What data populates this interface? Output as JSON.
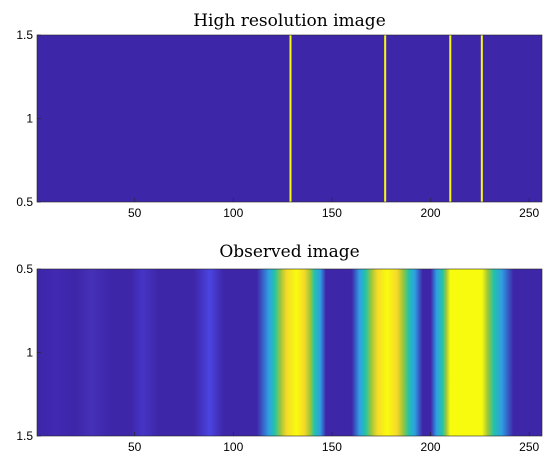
{
  "chart_data": [
    {
      "type": "heatmap",
      "title": "High resolution image",
      "xlim": [
        0.5,
        256.5
      ],
      "ylim": [
        0.5,
        1.5
      ],
      "y_direction": "normal",
      "xticks": [
        50,
        100,
        150,
        200,
        250
      ],
      "yticks": [
        0.5,
        1,
        1.5
      ],
      "colormap": "parula",
      "background_color": "#3E26A8",
      "lines": [
        {
          "x": 129,
          "color": "#F9FB0E"
        },
        {
          "x": 177,
          "color": "#F9FB0E"
        },
        {
          "x": 210,
          "color": "#F9FB0E"
        },
        {
          "x": 226,
          "color": "#F9FB0E"
        }
      ]
    },
    {
      "type": "heatmap",
      "title": "Observed image",
      "xlim": [
        0.5,
        256.5
      ],
      "ylim": [
        0.5,
        1.5
      ],
      "y_direction": "reverse",
      "xticks": [
        50,
        100,
        150,
        200,
        250
      ],
      "yticks": [
        0.5,
        1,
        1.5
      ],
      "colormap": "parula",
      "gradient_stops": [
        {
          "x": 0,
          "color": "#3E26A8"
        },
        {
          "x": 10,
          "color": "#4129B2"
        },
        {
          "x": 20,
          "color": "#3E26A8"
        },
        {
          "x": 28,
          "color": "#4530B8"
        },
        {
          "x": 38,
          "color": "#3E26A8"
        },
        {
          "x": 48,
          "color": "#3E26A8"
        },
        {
          "x": 54,
          "color": "#4535C6"
        },
        {
          "x": 62,
          "color": "#3E26A8"
        },
        {
          "x": 80,
          "color": "#3E26A8"
        },
        {
          "x": 88,
          "color": "#4A44E0"
        },
        {
          "x": 95,
          "color": "#3E26A8"
        },
        {
          "x": 112,
          "color": "#3E26A8"
        },
        {
          "x": 118,
          "color": "#2F9FE4"
        },
        {
          "x": 121,
          "color": "#23C3A8"
        },
        {
          "x": 124,
          "color": "#9DC63A"
        },
        {
          "x": 127,
          "color": "#F5D929"
        },
        {
          "x": 132,
          "color": "#F9FB0E"
        },
        {
          "x": 136,
          "color": "#F5D929"
        },
        {
          "x": 139,
          "color": "#9DC63A"
        },
        {
          "x": 141,
          "color": "#23C3A8"
        },
        {
          "x": 144,
          "color": "#2F9FE4"
        },
        {
          "x": 147,
          "color": "#3E26A8"
        },
        {
          "x": 160,
          "color": "#3E26A8"
        },
        {
          "x": 164,
          "color": "#2F9FE4"
        },
        {
          "x": 167,
          "color": "#23C3A8"
        },
        {
          "x": 170,
          "color": "#9DC63A"
        },
        {
          "x": 173,
          "color": "#F5D929"
        },
        {
          "x": 178,
          "color": "#F9FB0E"
        },
        {
          "x": 183,
          "color": "#F5D929"
        },
        {
          "x": 186,
          "color": "#9DC63A"
        },
        {
          "x": 189,
          "color": "#23C3A8"
        },
        {
          "x": 192,
          "color": "#2F9FE4"
        },
        {
          "x": 196,
          "color": "#3E26A8"
        },
        {
          "x": 200,
          "color": "#3E26A8"
        },
        {
          "x": 203,
          "color": "#2F9FE4"
        },
        {
          "x": 206,
          "color": "#23C3A8"
        },
        {
          "x": 208,
          "color": "#9DC63A"
        },
        {
          "x": 210,
          "color": "#F9FB0E"
        },
        {
          "x": 226,
          "color": "#F9FB0E"
        },
        {
          "x": 229,
          "color": "#9DC63A"
        },
        {
          "x": 232,
          "color": "#23C3A8"
        },
        {
          "x": 236,
          "color": "#2F9FE4"
        },
        {
          "x": 242,
          "color": "#3E26A8"
        },
        {
          "x": 256,
          "color": "#3E26A8"
        }
      ]
    }
  ]
}
